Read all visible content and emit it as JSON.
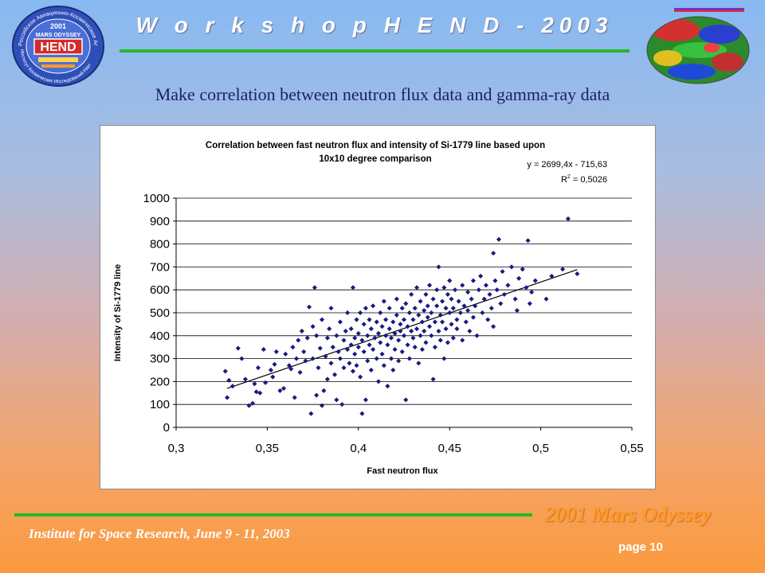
{
  "header": {
    "title": "W o r k s h o p   H E N D - 2003",
    "subtitle": "Make correlation between neutron flux data and gamma-ray data"
  },
  "logo": {
    "top_text": "Российское Авиационно-Космическое Агентство",
    "year": "2001",
    "mission": "MARS ODYSSEY",
    "name": "HEND",
    "bottom_text": "Институт Космических Исследований РАН"
  },
  "footer": {
    "mission": "2001 Mars Odyssey",
    "institute": "Institute for Space Research, June 9 - 11, 2003",
    "page": "page 10"
  },
  "colors": {
    "marker": "#1a1a80",
    "rule": "#22bb22",
    "mission_text": "#ff9a2e"
  },
  "chart_data": {
    "type": "scatter",
    "title": "Correlation between fast neutron flux and intensity of Si-1779 line based upon 10x10 degree comparison",
    "title_lines": [
      "Correlation between fast neutron flux and intensity of Si-1779 line based upon",
      "10x10 degree comparison"
    ],
    "xlabel": "Fast neutron flux",
    "ylabel": "Intensity of Si-1779 line",
    "xlim": [
      0.3,
      0.55
    ],
    "ylim": [
      0,
      1000
    ],
    "x_ticks": [
      "0,3",
      "0,35",
      "0,4",
      "0,45",
      "0,5",
      "0,55"
    ],
    "y_ticks": [
      "0",
      "100",
      "200",
      "300",
      "400",
      "500",
      "600",
      "700",
      "800",
      "900",
      "1000"
    ],
    "grid": "horizontal",
    "equation": "y = 2699,4x - 715,63",
    "r2_label": "R",
    "r2_value": " = 0,5026",
    "trendline": {
      "slope": 2699.4,
      "intercept": -715.63,
      "x_range": [
        0.328,
        0.52
      ]
    },
    "points": [
      [
        0.327,
        245
      ],
      [
        0.328,
        130
      ],
      [
        0.329,
        205
      ],
      [
        0.331,
        180
      ],
      [
        0.334,
        345
      ],
      [
        0.336,
        300
      ],
      [
        0.338,
        210
      ],
      [
        0.34,
        95
      ],
      [
        0.342,
        105
      ],
      [
        0.343,
        190
      ],
      [
        0.344,
        155
      ],
      [
        0.345,
        260
      ],
      [
        0.346,
        150
      ],
      [
        0.348,
        340
      ],
      [
        0.349,
        195
      ],
      [
        0.352,
        250
      ],
      [
        0.353,
        220
      ],
      [
        0.354,
        275
      ],
      [
        0.355,
        330
      ],
      [
        0.357,
        160
      ],
      [
        0.359,
        170
      ],
      [
        0.36,
        320
      ],
      [
        0.362,
        270
      ],
      [
        0.363,
        255
      ],
      [
        0.364,
        350
      ],
      [
        0.365,
        130
      ],
      [
        0.366,
        300
      ],
      [
        0.367,
        380
      ],
      [
        0.368,
        240
      ],
      [
        0.369,
        420
      ],
      [
        0.37,
        330
      ],
      [
        0.371,
        290
      ],
      [
        0.372,
        390
      ],
      [
        0.373,
        525
      ],
      [
        0.374,
        60
      ],
      [
        0.375,
        300
      ],
      [
        0.375,
        440
      ],
      [
        0.376,
        610
      ],
      [
        0.377,
        140
      ],
      [
        0.377,
        400
      ],
      [
        0.378,
        260
      ],
      [
        0.379,
        345
      ],
      [
        0.38,
        95
      ],
      [
        0.38,
        470
      ],
      [
        0.381,
        160
      ],
      [
        0.382,
        310
      ],
      [
        0.383,
        390
      ],
      [
        0.383,
        210
      ],
      [
        0.384,
        430
      ],
      [
        0.385,
        280
      ],
      [
        0.385,
        520
      ],
      [
        0.386,
        350
      ],
      [
        0.387,
        230
      ],
      [
        0.388,
        400
      ],
      [
        0.388,
        120
      ],
      [
        0.389,
        330
      ],
      [
        0.39,
        460
      ],
      [
        0.39,
        300
      ],
      [
        0.391,
        100
      ],
      [
        0.392,
        380
      ],
      [
        0.392,
        260
      ],
      [
        0.393,
        420
      ],
      [
        0.394,
        340
      ],
      [
        0.394,
        500
      ],
      [
        0.395,
        280
      ],
      [
        0.396,
        360
      ],
      [
        0.396,
        430
      ],
      [
        0.397,
        245
      ],
      [
        0.397,
        610
      ],
      [
        0.398,
        390
      ],
      [
        0.398,
        320
      ],
      [
        0.399,
        470
      ],
      [
        0.399,
        270
      ],
      [
        0.4,
        350
      ],
      [
        0.4,
        410
      ],
      [
        0.401,
        500
      ],
      [
        0.401,
        220
      ],
      [
        0.402,
        380
      ],
      [
        0.402,
        60
      ],
      [
        0.403,
        330
      ],
      [
        0.403,
        450
      ],
      [
        0.404,
        120
      ],
      [
        0.404,
        520
      ],
      [
        0.405,
        290
      ],
      [
        0.405,
        400
      ],
      [
        0.406,
        360
      ],
      [
        0.406,
        470
      ],
      [
        0.407,
        250
      ],
      [
        0.407,
        430
      ],
      [
        0.408,
        340
      ],
      [
        0.408,
        530
      ],
      [
        0.409,
        390
      ],
      [
        0.41,
        300
      ],
      [
        0.41,
        460
      ],
      [
        0.411,
        410
      ],
      [
        0.411,
        200
      ],
      [
        0.412,
        370
      ],
      [
        0.412,
        500
      ],
      [
        0.413,
        320
      ],
      [
        0.413,
        440
      ],
      [
        0.414,
        550
      ],
      [
        0.414,
        270
      ],
      [
        0.415,
        400
      ],
      [
        0.415,
        470
      ],
      [
        0.416,
        180
      ],
      [
        0.416,
        360
      ],
      [
        0.417,
        430
      ],
      [
        0.417,
        520
      ],
      [
        0.418,
        300
      ],
      [
        0.418,
        390
      ],
      [
        0.419,
        460
      ],
      [
        0.419,
        250
      ],
      [
        0.42,
        410
      ],
      [
        0.42,
        340
      ],
      [
        0.421,
        490
      ],
      [
        0.421,
        560
      ],
      [
        0.422,
        380
      ],
      [
        0.422,
        290
      ],
      [
        0.423,
        450
      ],
      [
        0.423,
        420
      ],
      [
        0.424,
        520
      ],
      [
        0.424,
        330
      ],
      [
        0.425,
        470
      ],
      [
        0.425,
        400
      ],
      [
        0.426,
        120
      ],
      [
        0.426,
        540
      ],
      [
        0.427,
        360
      ],
      [
        0.427,
        440
      ],
      [
        0.428,
        500
      ],
      [
        0.428,
        300
      ],
      [
        0.429,
        420
      ],
      [
        0.429,
        580
      ],
      [
        0.43,
        390
      ],
      [
        0.43,
        470
      ],
      [
        0.431,
        350
      ],
      [
        0.431,
        520
      ],
      [
        0.432,
        430
      ],
      [
        0.432,
        610
      ],
      [
        0.433,
        280
      ],
      [
        0.433,
        490
      ],
      [
        0.434,
        400
      ],
      [
        0.434,
        550
      ],
      [
        0.435,
        460
      ],
      [
        0.435,
        340
      ],
      [
        0.436,
        510
      ],
      [
        0.436,
        420
      ],
      [
        0.437,
        580
      ],
      [
        0.437,
        370
      ],
      [
        0.438,
        480
      ],
      [
        0.438,
        530
      ],
      [
        0.439,
        440
      ],
      [
        0.439,
        620
      ],
      [
        0.44,
        400
      ],
      [
        0.44,
        500
      ],
      [
        0.441,
        210
      ],
      [
        0.441,
        560
      ],
      [
        0.442,
        460
      ],
      [
        0.442,
        350
      ],
      [
        0.443,
        530
      ],
      [
        0.443,
        600
      ],
      [
        0.444,
        420
      ],
      [
        0.444,
        700
      ],
      [
        0.445,
        490
      ],
      [
        0.445,
        380
      ],
      [
        0.446,
        550
      ],
      [
        0.446,
        460
      ],
      [
        0.447,
        610
      ],
      [
        0.447,
        300
      ],
      [
        0.448,
        520
      ],
      [
        0.448,
        430
      ],
      [
        0.449,
        580
      ],
      [
        0.449,
        370
      ],
      [
        0.45,
        500
      ],
      [
        0.45,
        640
      ],
      [
        0.451,
        450
      ],
      [
        0.451,
        560
      ],
      [
        0.452,
        390
      ],
      [
        0.452,
        520
      ],
      [
        0.453,
        600
      ],
      [
        0.454,
        470
      ],
      [
        0.454,
        430
      ],
      [
        0.455,
        550
      ],
      [
        0.456,
        500
      ],
      [
        0.457,
        620
      ],
      [
        0.457,
        380
      ],
      [
        0.458,
        530
      ],
      [
        0.459,
        460
      ],
      [
        0.46,
        590
      ],
      [
        0.46,
        510
      ],
      [
        0.461,
        420
      ],
      [
        0.462,
        560
      ],
      [
        0.463,
        640
      ],
      [
        0.463,
        480
      ],
      [
        0.464,
        530
      ],
      [
        0.465,
        400
      ],
      [
        0.466,
        600
      ],
      [
        0.467,
        660
      ],
      [
        0.468,
        500
      ],
      [
        0.469,
        560
      ],
      [
        0.47,
        620
      ],
      [
        0.471,
        470
      ],
      [
        0.472,
        580
      ],
      [
        0.473,
        520
      ],
      [
        0.474,
        760
      ],
      [
        0.474,
        440
      ],
      [
        0.475,
        640
      ],
      [
        0.476,
        600
      ],
      [
        0.477,
        820
      ],
      [
        0.478,
        540
      ],
      [
        0.479,
        680
      ],
      [
        0.48,
        580
      ],
      [
        0.482,
        620
      ],
      [
        0.484,
        700
      ],
      [
        0.486,
        560
      ],
      [
        0.487,
        510
      ],
      [
        0.488,
        650
      ],
      [
        0.49,
        690
      ],
      [
        0.492,
        610
      ],
      [
        0.493,
        815
      ],
      [
        0.494,
        540
      ],
      [
        0.495,
        590
      ],
      [
        0.497,
        640
      ],
      [
        0.503,
        560
      ],
      [
        0.506,
        660
      ],
      [
        0.512,
        690
      ],
      [
        0.515,
        910
      ],
      [
        0.52,
        670
      ]
    ]
  }
}
